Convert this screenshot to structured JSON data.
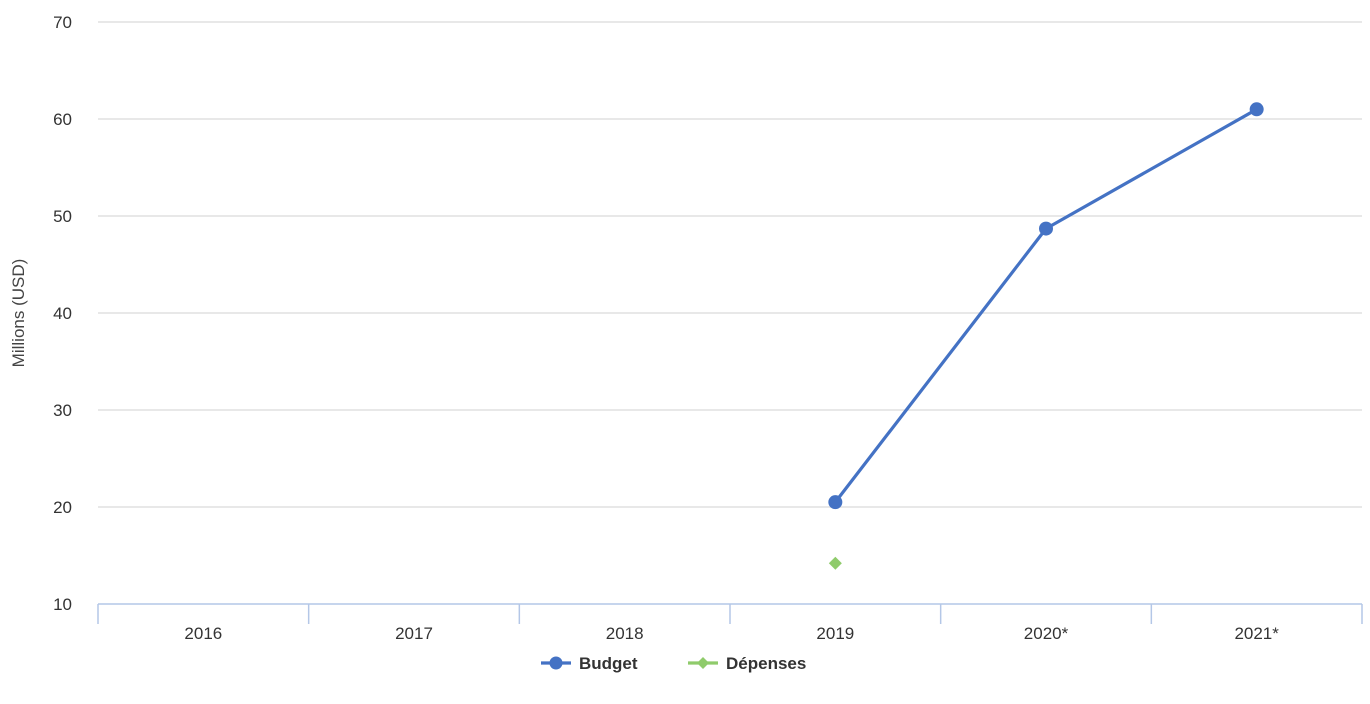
{
  "chart_data": {
    "type": "line",
    "categories": [
      "2016",
      "2017",
      "2018",
      "2019",
      "2020*",
      "2021*"
    ],
    "series": [
      {
        "name": "Budget",
        "values": [
          null,
          null,
          null,
          20.5,
          48.7,
          61.0
        ],
        "color": "#4472C4",
        "marker": "circle"
      },
      {
        "name": "Dépenses",
        "values": [
          null,
          null,
          null,
          14.2,
          null,
          null
        ],
        "color": "#8FCB6B",
        "marker": "diamond"
      }
    ],
    "ylabel": "Millions (USD)",
    "xlabel": "",
    "ylim": [
      10,
      70
    ],
    "yticks": [
      10,
      20,
      30,
      40,
      50,
      60,
      70
    ],
    "grid": true,
    "legend_position": "bottom-center",
    "colors": {
      "grid": "#d9d9d9",
      "axis": "#b4c7e7",
      "text": "#333333"
    }
  }
}
